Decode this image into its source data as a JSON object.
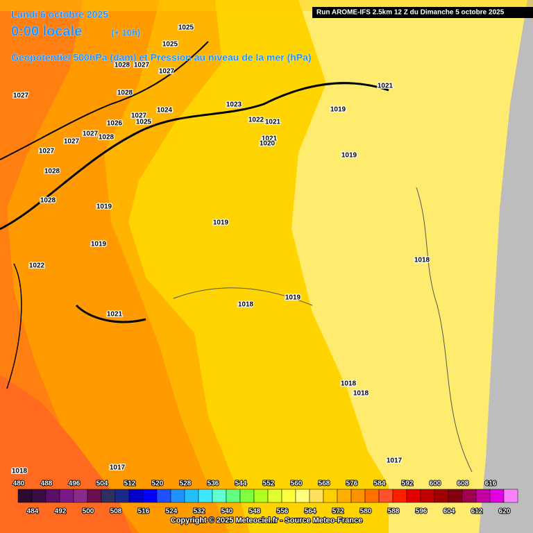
{
  "header": {
    "date": "Lundi 6 octobre 2025",
    "time": "0:00 locale",
    "lead": "(+ 10h)",
    "field": "Geopotentiel 500hPa (dam) et Pression au niveau de la mer (hPa)",
    "run": "Run AROME-IFS 2.5km 12 Z du Dimanche 5 octobre 2025"
  },
  "isobar_labels": [
    "1025",
    "1028",
    "1027",
    "1027",
    "1025",
    "1027",
    "1028",
    "1024",
    "1023",
    "1021",
    "1019",
    "1027",
    "1026",
    "1025",
    "1022",
    "1021",
    "1027",
    "1027",
    "1028",
    "1021",
    "1020",
    "1027",
    "1019",
    "1028",
    "1028",
    "1019",
    "1019",
    "1019",
    "1018",
    "1022",
    "1019",
    "1018",
    "1021",
    "1018",
    "1018",
    "1017",
    "1017",
    "1018"
  ],
  "colorbar": {
    "values": [
      480,
      484,
      488,
      492,
      496,
      500,
      504,
      508,
      512,
      516,
      520,
      524,
      528,
      532,
      536,
      540,
      544,
      548,
      552,
      556,
      560,
      564,
      568,
      572,
      576,
      580,
      584,
      588,
      592,
      596,
      600,
      604,
      608,
      612,
      616,
      620
    ],
    "colors": [
      "#2a0a2e",
      "#3b0d45",
      "#5a1066",
      "#7a1a8a",
      "#8a2a8a",
      "#6a1050",
      "#303060",
      "#1a2a8a",
      "#0000c8",
      "#0000ff",
      "#1e50ff",
      "#1e90ff",
      "#20c0ff",
      "#40e8ff",
      "#60ffd0",
      "#60ff80",
      "#80ff40",
      "#b0ff20",
      "#e0ff30",
      "#ffff40",
      "#ffff80",
      "#ffe060",
      "#ffd000",
      "#ffb000",
      "#ff9000",
      "#ff7000",
      "#ff5030",
      "#ff2000",
      "#e00000",
      "#c00000",
      "#a00000",
      "#800010",
      "#a00050",
      "#c000a0",
      "#e000e0",
      "#ff80ff"
    ]
  },
  "footer": {
    "copyright": "Copyright © 2025 Meteociel.fr - Source Meteo-France"
  }
}
